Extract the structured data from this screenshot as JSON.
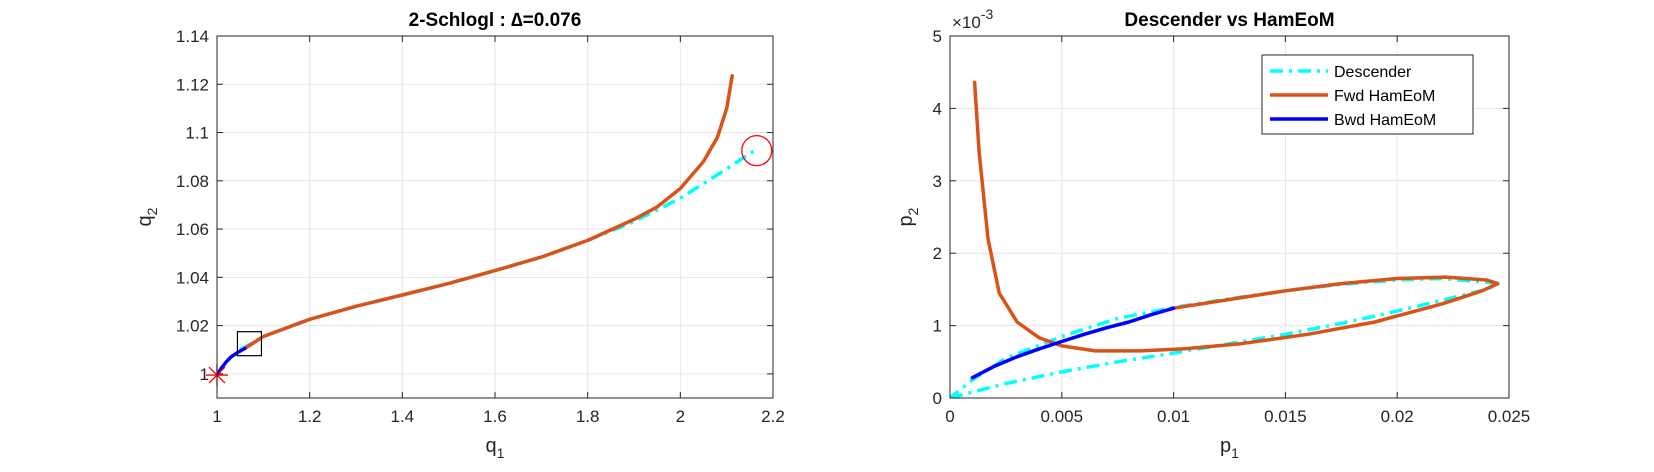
{
  "colors": {
    "descender": "#00ffff",
    "fwd": "#d95319",
    "bwd": "#0000ff",
    "marker": "#ff0000",
    "grid": "#e6e6e6",
    "axis": "#262626"
  },
  "chart_data": [
    {
      "type": "line",
      "title": "2-Schlogl : ∆=0.076",
      "xlabel": "q",
      "xlabel_sub": "1",
      "ylabel": "q",
      "ylabel_sub": "2",
      "xlim": [
        1,
        2.2
      ],
      "ylim": [
        0.99,
        1.14
      ],
      "xticks": [
        1,
        1.2,
        1.4,
        1.6,
        1.8,
        2,
        2.2
      ],
      "xtick_labels": [
        "1",
        "1.2",
        "1.4",
        "1.6",
        "1.8",
        "2",
        "2.2"
      ],
      "yticks": [
        1,
        1.02,
        1.04,
        1.06,
        1.08,
        1.1,
        1.12,
        1.14
      ],
      "ytick_labels": [
        "1",
        "1.02",
        "1.04",
        "1.06",
        "1.08",
        "1.1",
        "1.12",
        "1.14"
      ],
      "grid": true,
      "series": [
        {
          "key": "descender",
          "style": "dashdot",
          "x": [
            1.05,
            1.1,
            1.2,
            1.3,
            1.4,
            1.5,
            1.6,
            1.7,
            1.8,
            1.9,
            2.0,
            2.08,
            2.16
          ],
          "y": [
            1.01,
            1.0155,
            1.0226,
            1.028,
            1.0327,
            1.0375,
            1.0428,
            1.0484,
            1.0553,
            1.0631,
            1.0728,
            1.0825,
            1.0925
          ]
        },
        {
          "key": "fwd",
          "style": "solid",
          "x": [
            1.06,
            1.1,
            1.2,
            1.3,
            1.4,
            1.5,
            1.6,
            1.7,
            1.8,
            1.9,
            1.95,
            2.0,
            2.05,
            2.08,
            2.1,
            2.112
          ],
          "y": [
            1.0105,
            1.0155,
            1.0226,
            1.028,
            1.0327,
            1.0375,
            1.0428,
            1.0484,
            1.0553,
            1.064,
            1.0692,
            1.0768,
            1.088,
            1.098,
            1.11,
            1.1235
          ]
        },
        {
          "key": "bwd",
          "style": "solid",
          "x": [
            1.0,
            1.01,
            1.02,
            1.03,
            1.045,
            1.06
          ],
          "y": [
            0.9995,
            1.0025,
            1.005,
            1.007,
            1.0089,
            1.0105
          ]
        }
      ],
      "markers": [
        {
          "shape": "star",
          "x": 1.0,
          "y": 0.9995
        },
        {
          "shape": "square",
          "x": 1.07,
          "y": 1.0125
        },
        {
          "shape": "circle",
          "x": 2.165,
          "y": 1.0925
        }
      ]
    },
    {
      "type": "line",
      "title": "Descender vs HamEoM",
      "xlabel": "p",
      "xlabel_sub": "1",
      "ylabel": "p",
      "ylabel_sub": "2",
      "exponent_label": "×10",
      "exponent_power": "-3",
      "xlim": [
        0,
        0.025
      ],
      "ylim": [
        0,
        0.005
      ],
      "xticks": [
        0,
        0.005,
        0.01,
        0.015,
        0.02,
        0.025
      ],
      "xtick_labels": [
        "0",
        "0.005",
        "0.01",
        "0.015",
        "0.02",
        "0.025"
      ],
      "yticks": [
        0,
        0.001,
        0.002,
        0.003,
        0.004,
        0.005
      ],
      "ytick_labels": [
        "0",
        "1",
        "2",
        "3",
        "4",
        "5"
      ],
      "grid": true,
      "legend": {
        "location": "top-right",
        "entries": [
          {
            "key": "descender",
            "label": "Descender"
          },
          {
            "key": "fwd",
            "label": "Fwd HamEoM"
          },
          {
            "key": "bwd",
            "label": "Bwd HamEoM"
          }
        ]
      },
      "series": [
        {
          "key": "descender",
          "style": "dashdot",
          "x": [
            0,
            0.0025,
            0.005,
            0.0075,
            0.01,
            0.0125,
            0.015,
            0.0175,
            0.02,
            0.022,
            0.024,
            0.0245,
            0.024,
            0.022,
            0.02,
            0.0175,
            0.015,
            0.0125,
            0.01,
            0.0075,
            0.005,
            0.0025,
            0.001,
            0
          ],
          "y": [
            0,
            0.0002,
            0.00036,
            0.0005,
            0.00062,
            0.00075,
            0.00088,
            0.00103,
            0.0012,
            0.00135,
            0.0015,
            0.00157,
            0.0016,
            0.00165,
            0.00163,
            0.00157,
            0.00148,
            0.00137,
            0.00125,
            0.0011,
            0.00085,
            0.00055,
            0.00025,
            0
          ]
        },
        {
          "key": "fwd",
          "style": "solid",
          "x": [
            0.0011,
            0.0013,
            0.0017,
            0.0022,
            0.003,
            0.004,
            0.005,
            0.0065,
            0.0085,
            0.0105,
            0.013,
            0.016,
            0.019,
            0.022,
            0.0238,
            0.0245,
            0.024,
            0.0222,
            0.02,
            0.0175,
            0.015,
            0.0125,
            0.01
          ],
          "y": [
            0.00436,
            0.0034,
            0.0022,
            0.00145,
            0.00105,
            0.00083,
            0.00072,
            0.00065,
            0.00065,
            0.00068,
            0.00075,
            0.00088,
            0.00105,
            0.0013,
            0.00148,
            0.00158,
            0.00163,
            0.00167,
            0.00165,
            0.00158,
            0.00148,
            0.00136,
            0.00124
          ]
        },
        {
          "key": "bwd",
          "style": "solid",
          "x": [
            0.001,
            0.002,
            0.003,
            0.004,
            0.005,
            0.006,
            0.007,
            0.008,
            0.009,
            0.01
          ],
          "y": [
            0.00028,
            0.00044,
            0.00057,
            0.00068,
            0.00078,
            0.00088,
            0.00097,
            0.00105,
            0.00115,
            0.00124
          ]
        }
      ]
    }
  ]
}
